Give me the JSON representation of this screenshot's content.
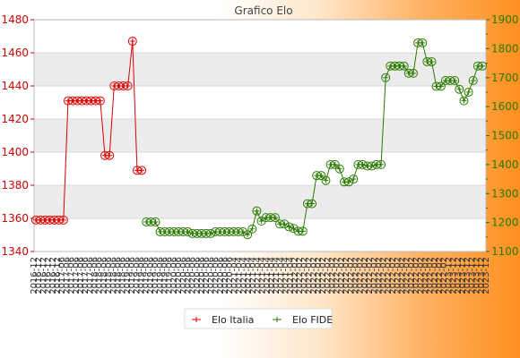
{
  "chart_data": {
    "type": "line",
    "title": "Grafico Elo",
    "series": [
      {
        "name": "Elo Italia",
        "axis": "left",
        "color": "#dd0000",
        "values": [
          1359,
          1359,
          1359,
          1359,
          1359,
          1359,
          1359,
          1431,
          1431,
          1431,
          1431,
          1431,
          1431,
          1431,
          1431,
          1398,
          1398,
          1440,
          1440,
          1440,
          1440,
          1467,
          1389,
          1389
        ]
      },
      {
        "name": "Elo FIDE",
        "axis": "right",
        "color": "#2a7a00",
        "start_index": 24,
        "values": [
          1202,
          1202,
          1202,
          1168,
          1168,
          1168,
          1168,
          1168,
          1168,
          1168,
          1162,
          1162,
          1162,
          1162,
          1162,
          1168,
          1168,
          1168,
          1168,
          1168,
          1168,
          1168,
          1158,
          1178,
          1240,
          1205,
          1217,
          1217,
          1217,
          1195,
          1195,
          1185,
          1180,
          1170,
          1170,
          1265,
          1265,
          1362,
          1362,
          1345,
          1400,
          1400,
          1385,
          1340,
          1340,
          1350,
          1400,
          1400,
          1395,
          1395,
          1400,
          1400,
          1700,
          1740,
          1740,
          1740,
          1740,
          1715,
          1715,
          1820,
          1820,
          1755,
          1755,
          1670,
          1670,
          1690,
          1690,
          1690,
          1660,
          1620,
          1650,
          1690,
          1740,
          1740
        ]
      }
    ],
    "x_labels": [
      "2016-12",
      "2016-12",
      "2016-12",
      "2016-12",
      "2016-12",
      "2016-12",
      "2017-06",
      "2017-06",
      "2017-06",
      "2017-06",
      "2017-06",
      "2017-06",
      "2017-06",
      "2018-06",
      "2018-06",
      "2018-06",
      "2018-06",
      "2018-06",
      "2018-06",
      "2018-06",
      "2019-06",
      "2019-06",
      "2019-06",
      "2019-06",
      "2019-06",
      "2019-06",
      "2019-06",
      "2019-06",
      "2019-06",
      "2019-06",
      "2020-06",
      "2020-06",
      "2020-06",
      "2020-06",
      "2020-06",
      "2020-06",
      "2020-06",
      "2020-06",
      "2020-06",
      "2020-06",
      "2020-06",
      "2020-06",
      "2020-06",
      "2021-04",
      "2021-04",
      "2021-04",
      "2021-04",
      "2021-04",
      "2021-04",
      "2021-04",
      "2021-04",
      "2021-04",
      "2021-04",
      "2021-04",
      "2021-04",
      "2021-04",
      "2022-02",
      "2022-02",
      "2022-02",
      "2022-02",
      "2022-02",
      "2022-02",
      "2022-02",
      "2022-02",
      "2022-02",
      "2022-02",
      "2022-02",
      "2022-02",
      "2022-02",
      "2022-02",
      "2022-02",
      "2022-02",
      "2022-02",
      "2022-02",
      "2022-02",
      "2022-02",
      "2022-02",
      "2022-02",
      "2022-02",
      "2022-02",
      "2022-02",
      "2022-02",
      "2022-02",
      "2022-02",
      "2022-02",
      "2022-02",
      "2022-02",
      "2022-02",
      "2022-02",
      "2023-12",
      "2023-12",
      "2023-12",
      "2023-12",
      "2023-12",
      "2023-12",
      "2023-12",
      "2023-12",
      "2023-12"
    ],
    "y_left": {
      "min": 1340,
      "max": 1480,
      "ticks": [
        1340,
        1360,
        1380,
        1400,
        1420,
        1440,
        1460,
        1480
      ]
    },
    "y_right": {
      "min": 1100,
      "max": 1900,
      "ticks": [
        1100,
        1200,
        1300,
        1400,
        1500,
        1600,
        1700,
        1800,
        1900
      ]
    },
    "grid": true,
    "legend_position": "bottom"
  },
  "colors": {
    "left_axis": "#d00000",
    "right_axis": "#2a7a00",
    "band": "#ececec"
  }
}
